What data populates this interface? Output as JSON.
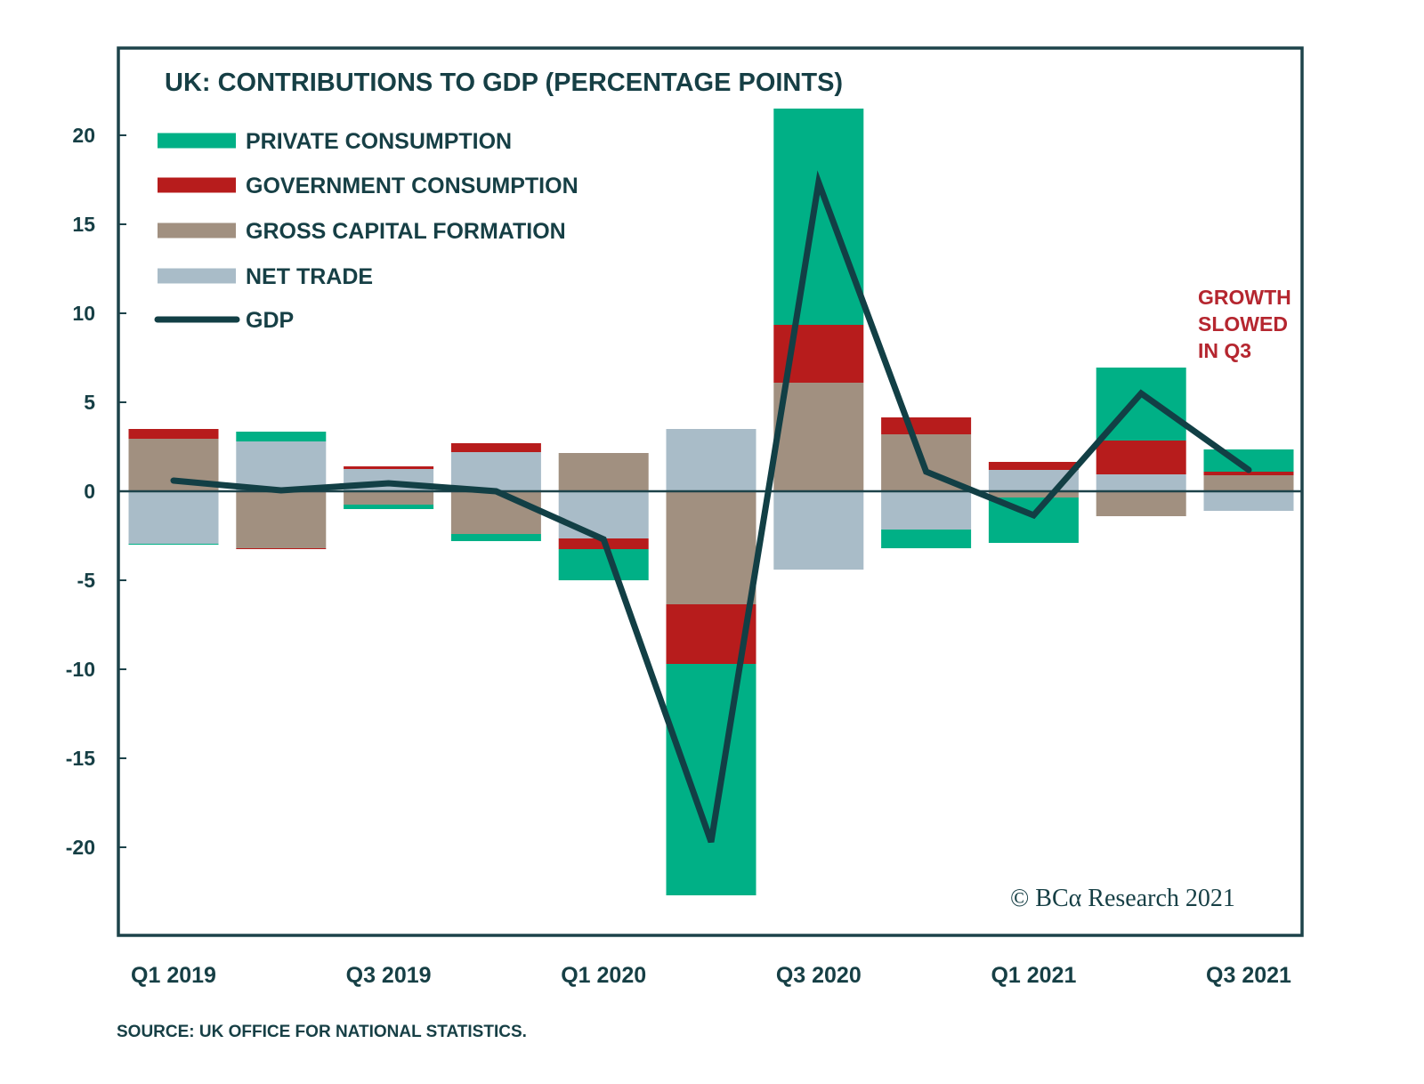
{
  "chart_data": {
    "type": "bar",
    "subtype": "stacked-bar-with-line",
    "title": "UK: CONTRIBUTIONS TO GDP (PERCENTAGE POINTS)",
    "xlabel": "",
    "ylabel": "",
    "ylim": [
      -24,
      23.5
    ],
    "yticks": [
      20,
      15,
      10,
      5,
      0,
      -5,
      -10,
      -15,
      -20
    ],
    "ytick_labels": [
      "20",
      "15",
      "10",
      "5",
      "0",
      "-5",
      "-10",
      "-15",
      "-20"
    ],
    "categories": [
      "Q1 2019",
      "Q2 2019",
      "Q3 2019",
      "Q4 2019",
      "Q1 2020",
      "Q2 2020",
      "Q3 2020",
      "Q4 2020",
      "Q1 2021",
      "Q2 2021",
      "Q3 2021"
    ],
    "xtick_labels": [
      {
        "index": 0,
        "label": "Q1 2019"
      },
      {
        "index": 2,
        "label": "Q3 2019"
      },
      {
        "index": 4,
        "label": "Q1 2020"
      },
      {
        "index": 6,
        "label": "Q3 2020"
      },
      {
        "index": 8,
        "label": "Q1 2021"
      },
      {
        "index": 10,
        "label": "Q3 2021"
      }
    ],
    "grid": false,
    "legend_position": "top-left",
    "series": [
      {
        "name": "PRIVATE CONSUMPTION",
        "kind": "bar",
        "color": "#00b086",
        "values": [
          -0.05,
          0.55,
          -0.25,
          -0.4,
          -1.75,
          -13.0,
          12.15,
          -1.05,
          -2.55,
          4.1,
          1.25
        ]
      },
      {
        "name": "GOVERNMENT CONSUMPTION",
        "kind": "bar",
        "color": "#b71c1c",
        "values": [
          0.55,
          -0.05,
          0.15,
          0.5,
          -0.6,
          -3.35,
          3.25,
          0.95,
          0.45,
          1.9,
          0.2
        ]
      },
      {
        "name": "GROSS CAPITAL FORMATION",
        "kind": "bar",
        "color": "#a19080",
        "values": [
          2.95,
          -3.2,
          -0.75,
          -2.4,
          2.15,
          -6.35,
          6.1,
          3.2,
          -0.35,
          -1.4,
          0.9
        ]
      },
      {
        "name": "NET TRADE",
        "kind": "bar",
        "color": "#a9bcc8",
        "values": [
          -2.95,
          2.8,
          1.25,
          2.2,
          -2.65,
          3.5,
          -4.4,
          -2.15,
          1.2,
          0.95,
          -1.1
        ]
      },
      {
        "name": "GDP",
        "kind": "line",
        "color": "#123f45",
        "values": [
          0.6,
          0.05,
          0.45,
          0.0,
          -2.7,
          -19.7,
          17.35,
          1.1,
          -1.35,
          5.5,
          1.2
        ]
      }
    ],
    "stack_order": [
      "NET TRADE",
      "GROSS CAPITAL FORMATION",
      "GOVERNMENT CONSUMPTION",
      "PRIVATE CONSUMPTION"
    ],
    "annotations": [
      {
        "text_lines": [
          "GROWTH",
          "SLOWED",
          "IN Q3"
        ],
        "color": "#b5262f",
        "near": "Q3 2021"
      }
    ],
    "copyright": "© BCα Research 2021",
    "source": "SOURCE: UK OFFICE FOR NATIONAL STATISTICS."
  },
  "colors": {
    "ink": "#163f45",
    "frame": "#1d434a",
    "annotation": "#b5262f"
  }
}
